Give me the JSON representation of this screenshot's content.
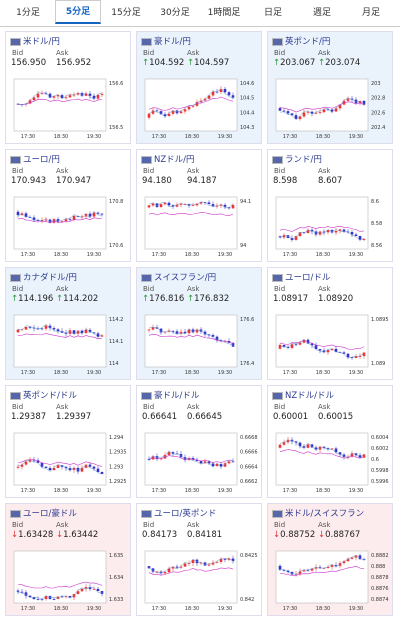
{
  "tabs": [
    "1分足",
    "5分足",
    "15分足",
    "30分足",
    "1時間足",
    "日足",
    "週足",
    "月足"
  ],
  "active_tab": 1,
  "labels": {
    "bid": "Bid",
    "ask": "Ask"
  },
  "time_ticks": [
    "17:30",
    "18:30",
    "19:30"
  ],
  "cards": [
    {
      "title": "米ドル/円",
      "bid": "156.950",
      "ask": "156.952",
      "yticks": [
        "156.6",
        "156.5"
      ]
    },
    {
      "title": "豪ドル/円",
      "arrow": "↑",
      "bid": "104.592",
      "ask": "104.597",
      "yticks": [
        "104.6",
        "104.5",
        "104.4",
        "104.3"
      ]
    },
    {
      "title": "英ポンド/円",
      "arrow": "↑",
      "bid": "203.067",
      "ask": "203.074",
      "yticks": [
        "203",
        "202.8",
        "202.6",
        "202.4"
      ]
    },
    {
      "title": "ユーロ/円",
      "bid": "170.943",
      "ask": "170.947",
      "yticks": [
        "170.8",
        "170.6"
      ]
    },
    {
      "title": "NZドル/円",
      "bid": "94.180",
      "ask": "94.187",
      "yticks": [
        "94.1",
        "94"
      ]
    },
    {
      "title": "ランド/円",
      "bid": "8.598",
      "ask": "8.607",
      "yticks": [
        "8.6",
        "8.58",
        "8.56"
      ]
    },
    {
      "title": "カナダドル/円",
      "arrow": "↑",
      "bid": "114.196",
      "ask": "114.202",
      "yticks": [
        "114.2",
        "114.1",
        "114"
      ]
    },
    {
      "title": "スイスフラン/円",
      "arrow": "↑",
      "bid": "176.816",
      "ask": "176.832",
      "yticks": [
        "176.6",
        "176.4"
      ]
    },
    {
      "title": "ユーロ/ドル",
      "bid": "1.08917",
      "ask": "1.08920",
      "yticks": [
        "1.0895",
        "1.089"
      ]
    },
    {
      "title": "英ポンド/ドル",
      "bid": "1.29387",
      "ask": "1.29397",
      "yticks": [
        "1.294",
        "1.2935",
        "1.293",
        "1.2925"
      ]
    },
    {
      "title": "豪ドル/ドル",
      "bid": "0.66641",
      "ask": "0.66645",
      "yticks": [
        "0.6668",
        "0.6666",
        "0.6664",
        "0.6662"
      ]
    },
    {
      "title": "NZドル/ドル",
      "bid": "0.60001",
      "ask": "0.60015",
      "yticks": [
        "0.6004",
        "0.6002",
        "0.6",
        "0.5998",
        "0.5996"
      ]
    },
    {
      "title": "ユーロ/豪ドル",
      "arrow": "↓",
      "bid": "1.63428",
      "ask": "1.63442",
      "yticks": [
        "1.635",
        "1.634",
        "1.633"
      ]
    },
    {
      "title": "ユーロ/英ポンド",
      "bid": "0.84173",
      "ask": "0.84181",
      "yticks": [
        "0.8425",
        "0.842"
      ]
    },
    {
      "title": "米ドル/スイスフラン",
      "arrow": "↓",
      "bid": "0.88752",
      "ask": "0.88767",
      "yticks": [
        "0.8882",
        "0.888",
        "0.8878",
        "0.8876",
        "0.8874"
      ]
    }
  ]
}
